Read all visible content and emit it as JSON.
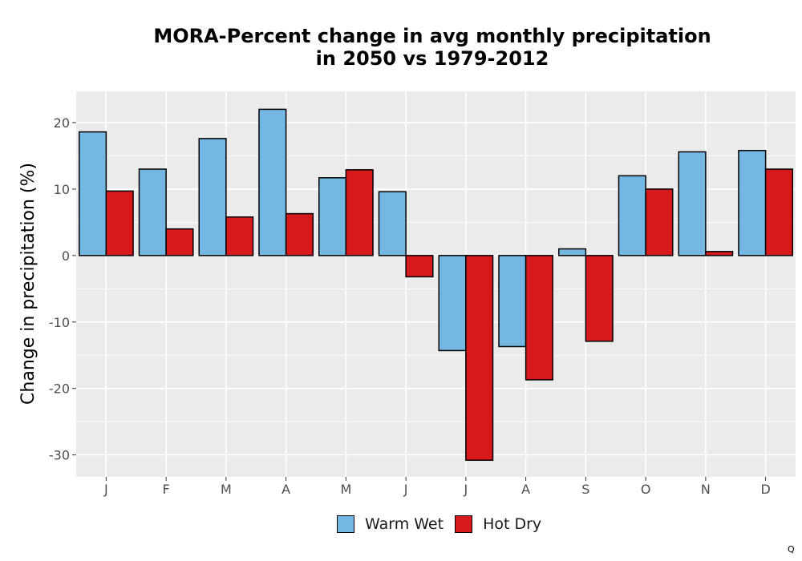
{
  "chart_data": {
    "type": "bar",
    "title": "MORA-Percent change in avg monthly precipitation in 2050 vs 1979-2012",
    "title_lines": [
      "MORA-Percent change in avg monthly precipitation",
      "in 2050 vs 1979-2012"
    ],
    "xlabel": "",
    "ylabel": "Change in precipitation (%)",
    "categories": [
      "J",
      "F",
      "M",
      "A",
      "M",
      "J",
      "J",
      "A",
      "S",
      "O",
      "N",
      "D"
    ],
    "series": [
      {
        "name": "Warm Wet",
        "color": "#74b7e2",
        "values": [
          18.6,
          13.0,
          17.6,
          22.0,
          11.7,
          9.6,
          -14.3,
          -13.7,
          1.0,
          12.0,
          15.6,
          15.8
        ]
      },
      {
        "name": "Hot Dry",
        "color": "#d7191c",
        "values": [
          9.7,
          4.0,
          5.8,
          6.3,
          12.9,
          -3.2,
          -30.8,
          -18.7,
          -12.9,
          10.0,
          0.6,
          13.0
        ]
      }
    ],
    "ylim": [
      -33.3,
      24.7
    ],
    "yticks": [
      -30,
      -20,
      -10,
      0,
      10,
      20
    ],
    "ytick_labels": [
      "-30",
      "-20",
      "-10",
      "0",
      "10",
      "20"
    ],
    "grid": true,
    "legend_position": "bottom"
  },
  "corner_mark": "Q"
}
